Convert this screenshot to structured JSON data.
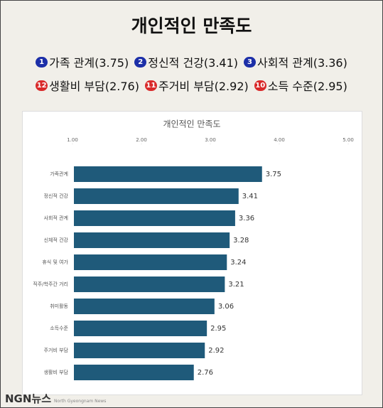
{
  "header": {
    "title": "개인적인 만족도"
  },
  "highlights": [
    [
      {
        "num": "1",
        "text": "가족 관계(3.75)"
      },
      {
        "num": "2",
        "text": "정신적 건강(3.41)"
      },
      {
        "num": "3",
        "text": "사회적 관계(3.36)"
      }
    ],
    [
      {
        "num": "12",
        "text": "생활비 부담(2.76)"
      },
      {
        "num": "11",
        "text": "주거비 부담(2.92)"
      },
      {
        "num": "10",
        "text": "소득 수준(2.95)"
      }
    ]
  ],
  "chart_data": {
    "type": "bar",
    "orientation": "horizontal",
    "title": "개인적인 만족도",
    "categories": [
      "가족관계",
      "정신적 건강",
      "사회적 관계",
      "신체적 건강",
      "휴식 및 여가",
      "직주/학주간 거리",
      "취미활동",
      "소득수준",
      "주거비 부담",
      "생활비 부담"
    ],
    "values": [
      3.75,
      3.41,
      3.36,
      3.28,
      3.24,
      3.21,
      3.06,
      2.95,
      2.92,
      2.76
    ],
    "color": "#1f5a7a",
    "xlim": [
      1,
      5
    ],
    "xticks": [
      {
        "value": 1,
        "label": "1.00"
      },
      {
        "value": 2,
        "label": "2.00"
      },
      {
        "value": 3,
        "label": "3.00"
      },
      {
        "value": 4,
        "label": "4.00"
      },
      {
        "value": 5,
        "label": "5.00"
      }
    ],
    "grid": false
  },
  "footer": {
    "logo": "NGN뉴스",
    "tagline": "North Gyeongnam News"
  }
}
